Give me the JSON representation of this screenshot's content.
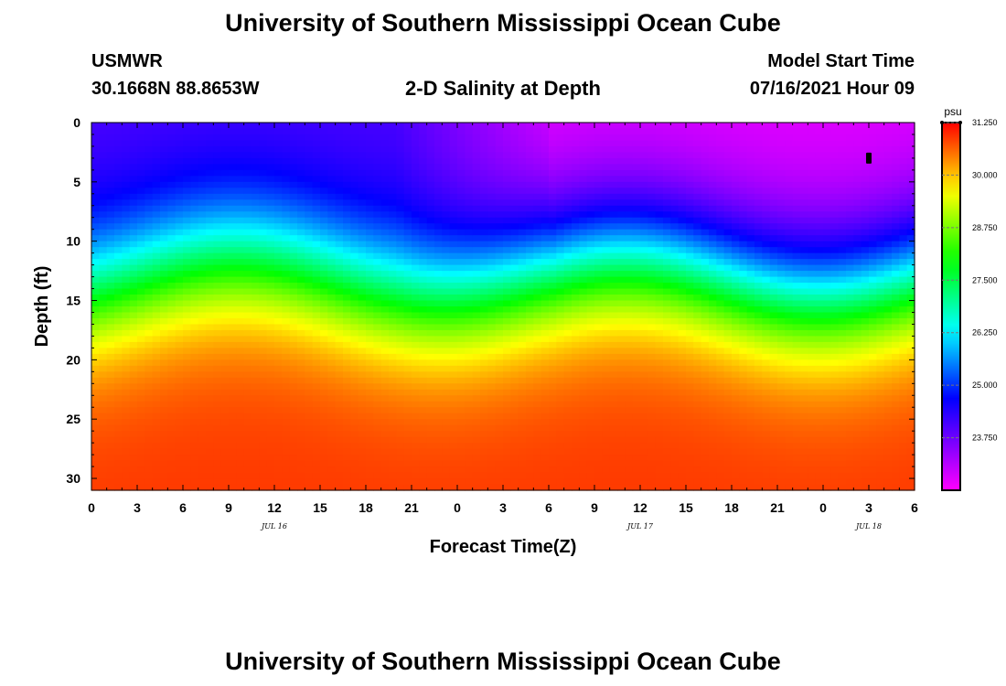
{
  "page": {
    "title": "University of Southern Mississippi Ocean Cube",
    "footer_title": "University of Southern Mississippi Ocean Cube",
    "station_id": "USMWR",
    "station_coords": "30.1668N  88.8653W",
    "plot_subtitle": "2-D Salinity at Depth",
    "model_start_label": "Model Start Time",
    "model_start_value": "07/16/2021 Hour 09"
  },
  "chart_data": {
    "type": "heatmap",
    "title": "2-D Salinity at Depth",
    "xlabel": "Forecast Time(Z)",
    "ylabel": "Depth (ft)",
    "x_range_hours": [
      0,
      54
    ],
    "x_tick_labels": [
      "0",
      "3",
      "6",
      "9",
      "12",
      "15",
      "18",
      "21",
      "0",
      "3",
      "6",
      "9",
      "12",
      "15",
      "18",
      "21",
      "0",
      "3",
      "6"
    ],
    "date_labels": [
      {
        "label": "JUL 16",
        "hour": 12
      },
      {
        "label": "JUL 17",
        "hour": 36
      },
      {
        "label": "JUL 18",
        "hour": 51
      }
    ],
    "y_range_ft": [
      0,
      31
    ],
    "y_tick_labels": [
      "0",
      "5",
      "10",
      "15",
      "20",
      "25",
      "30"
    ],
    "y_tick_values": [
      0,
      5,
      10,
      15,
      20,
      25,
      30
    ],
    "colorbar": {
      "unit": "psu",
      "min": 22.5,
      "max": 31.25,
      "tick_labels": [
        "31.250",
        "30.000",
        "28.750",
        "27.500",
        "26.250",
        "25.000",
        "23.750"
      ],
      "tick_values": [
        31.25,
        30.0,
        28.75,
        27.5,
        26.25,
        25.0,
        23.75
      ]
    },
    "marker": {
      "hour": 51,
      "depth_ft": 3
    },
    "grid": false
  },
  "colors": {
    "background": "#ffffff",
    "axis": "#000000",
    "marker": "#000000"
  }
}
